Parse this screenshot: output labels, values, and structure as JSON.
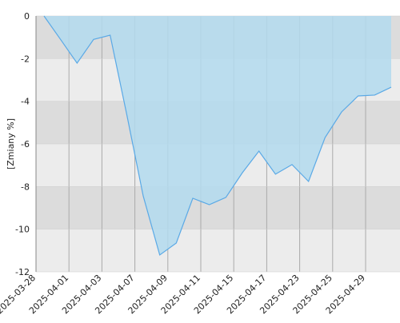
{
  "chart_data": {
    "type": "area",
    "y_label": "[Zmiany %]",
    "xtick_labels": [
      "2025-03-28",
      "2025-04-01",
      "2025-04-03",
      "2025-04-07",
      "2025-04-09",
      "2025-04-11",
      "2025-04-15",
      "2025-04-17",
      "2025-04-23",
      "2025-04-25",
      "2025-04-29"
    ],
    "values": [
      0,
      -1.1,
      -2.21,
      -1.1,
      -0.9,
      -4.6,
      -8.44,
      -11.21,
      -10.65,
      -8.55,
      -8.85,
      -8.51,
      -7.35,
      -6.34,
      -7.42,
      -6.97,
      -7.76,
      -5.7,
      -4.5,
      -3.75,
      -3.71,
      -3.34
    ],
    "color": "#5aa9e6",
    "fill": "#b3dbee",
    "ylim": [
      -12,
      0
    ],
    "yticks": [
      0,
      -2,
      -4,
      -6,
      -8,
      -10,
      -12
    ],
    "grid": true
  }
}
